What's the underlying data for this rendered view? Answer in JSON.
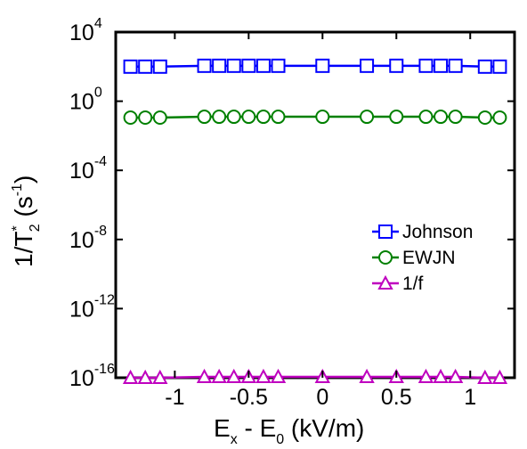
{
  "chart_data": {
    "type": "line",
    "xlabel": {
      "main": "E",
      "sub1": "x",
      "mid": " - E",
      "sub2": "0",
      "unit": " (kV/m)"
    },
    "ylabel": {
      "pre": "1/T",
      "sup": "*",
      "sub": "2",
      "post": " (s",
      "unit_sup": "-1",
      "close": ")"
    },
    "xlim": [
      -1.4,
      1.3
    ],
    "ylim_log10": [
      -16,
      4
    ],
    "y_scale": "log",
    "x_ticks": [
      {
        "value": -1,
        "label": "-1"
      },
      {
        "value": -0.5,
        "label": "-0.5"
      },
      {
        "value": 0,
        "label": "0"
      },
      {
        "value": 0.5,
        "label": "0.5"
      },
      {
        "value": 1,
        "label": "1"
      }
    ],
    "y_ticks": [
      {
        "exp": -16,
        "base": "10",
        "sup": "-16"
      },
      {
        "exp": -12,
        "base": "10",
        "sup": "-12"
      },
      {
        "exp": -8,
        "base": "10",
        "sup": "-8"
      },
      {
        "exp": -4,
        "base": "10",
        "sup": "-4"
      },
      {
        "exp": 0,
        "base": "10",
        "sup": "0"
      },
      {
        "exp": 4,
        "base": "10",
        "sup": "4"
      }
    ],
    "x": [
      -1.3,
      -1.2,
      -1.1,
      -0.8,
      -0.7,
      -0.6,
      -0.5,
      -0.4,
      -0.3,
      0,
      0.3,
      0.5,
      0.7,
      0.8,
      0.9,
      1.1,
      1.2
    ],
    "series": [
      {
        "name": "Johnson",
        "color": "#0000ff",
        "marker": "square",
        "y_log10": [
          2.0,
          2.0,
          2.0,
          2.05,
          2.05,
          2.05,
          2.05,
          2.05,
          2.05,
          2.05,
          2.05,
          2.05,
          2.05,
          2.05,
          2.05,
          2.0,
          2.0
        ]
      },
      {
        "name": "EWJN",
        "color": "#008000",
        "marker": "circle",
        "y_log10": [
          -0.95,
          -0.95,
          -0.95,
          -0.9,
          -0.9,
          -0.9,
          -0.9,
          -0.9,
          -0.9,
          -0.9,
          -0.9,
          -0.9,
          -0.9,
          -0.9,
          -0.9,
          -0.95,
          -0.95
        ]
      },
      {
        "name": "1/f",
        "color": "#bf00bf",
        "marker": "triangle",
        "y_log10": [
          -16.0,
          -16.0,
          -16.0,
          -15.95,
          -15.95,
          -15.95,
          -15.95,
          -15.95,
          -15.95,
          -15.95,
          -15.95,
          -15.95,
          -15.95,
          -15.95,
          -15.95,
          -16.0,
          -16.0
        ]
      }
    ],
    "legend_position": "lower-right inside"
  }
}
